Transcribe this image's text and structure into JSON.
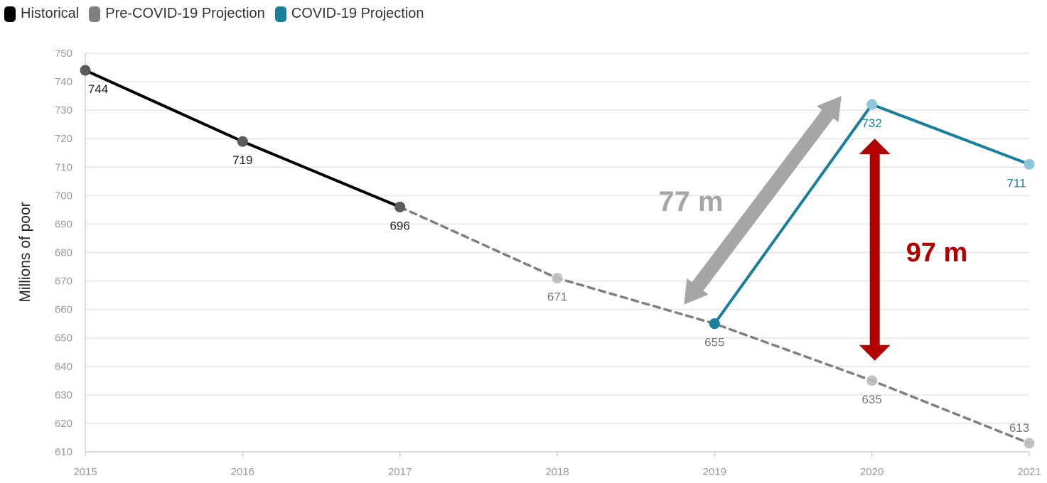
{
  "chart_data": {
    "type": "line",
    "ylabel": "Millions of poor",
    "xlabel": "",
    "x": [
      2015,
      2016,
      2017,
      2018,
      2019,
      2020,
      2021
    ],
    "xticks": [
      "2015",
      "2016",
      "2017",
      "2018",
      "2019",
      "2020",
      "2021"
    ],
    "yticks": [
      "610",
      "620",
      "630",
      "640",
      "650",
      "660",
      "670",
      "680",
      "690",
      "700",
      "710",
      "720",
      "730",
      "740",
      "750"
    ],
    "ylim": [
      610,
      750
    ],
    "grid": true,
    "legend_position": "top-left",
    "series": [
      {
        "name": "Historical",
        "color": "#000000",
        "style": "solid",
        "points": [
          {
            "x": 2015,
            "y": 744,
            "label": "744"
          },
          {
            "x": 2016,
            "y": 719,
            "label": "719"
          },
          {
            "x": 2017,
            "y": 696,
            "label": "696"
          }
        ]
      },
      {
        "name": "Pre-COVID-19 Projection",
        "color": "#808080",
        "style": "dashed",
        "points": [
          {
            "x": 2017,
            "y": 696,
            "label": ""
          },
          {
            "x": 2018,
            "y": 671,
            "label": "671"
          },
          {
            "x": 2019,
            "y": 655,
            "label": "655"
          },
          {
            "x": 2020,
            "y": 635,
            "label": "635"
          },
          {
            "x": 2021,
            "y": 613,
            "label": "613"
          }
        ]
      },
      {
        "name": "COVID-19 Projection",
        "color": "#1a7f9c",
        "style": "solid",
        "points": [
          {
            "x": 2019,
            "y": 655,
            "label": ""
          },
          {
            "x": 2020,
            "y": 732,
            "label": "732"
          },
          {
            "x": 2021,
            "y": 711,
            "label": "711"
          }
        ]
      }
    ],
    "annotations": [
      {
        "text": "77 m",
        "color": "#a6a6a6",
        "from": {
          "x": 2019,
          "y": 655
        },
        "to": {
          "x": 2020,
          "y": 732
        }
      },
      {
        "text": "97 m",
        "color": "#b20000",
        "from": {
          "x": 2020,
          "y": 635
        },
        "to": {
          "x": 2020,
          "y": 732
        }
      }
    ]
  }
}
